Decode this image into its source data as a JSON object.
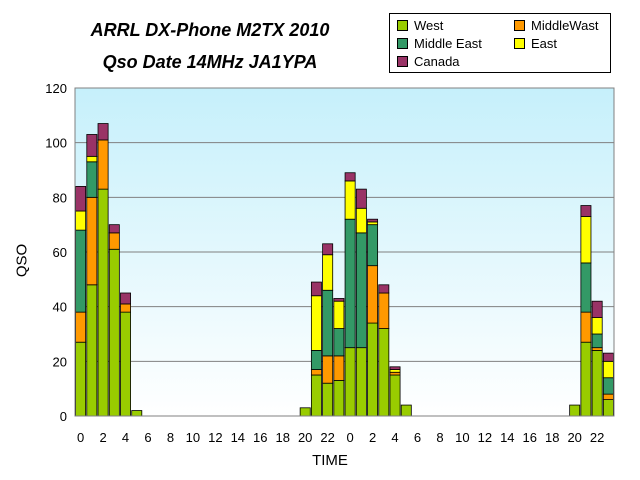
{
  "chart_data": {
    "type": "bar",
    "stacked": true,
    "title": "ARRL DX-Phone M2TX 2010",
    "subtitle": "Qso Date 14MHz JA1YPA",
    "xlabel": "TIME",
    "ylabel": "QSO",
    "ylim": [
      0,
      120
    ],
    "yticks": [
      0,
      20,
      40,
      60,
      80,
      100,
      120
    ],
    "grid": true,
    "legend_position": "top-right",
    "categories": [
      "0",
      "1",
      "2",
      "3",
      "4",
      "5",
      "6",
      "7",
      "8",
      "9",
      "10",
      "11",
      "12",
      "13",
      "14",
      "15",
      "16",
      "17",
      "18",
      "19",
      "20",
      "21",
      "22",
      "23",
      "0",
      "1",
      "2",
      "3",
      "4",
      "5",
      "6",
      "7",
      "8",
      "9",
      "10",
      "11",
      "12",
      "13",
      "14",
      "15",
      "16",
      "17",
      "18",
      "19",
      "20",
      "21",
      "22",
      "23"
    ],
    "xtick_labels": [
      "0",
      "2",
      "4",
      "6",
      "8",
      "10",
      "12",
      "14",
      "16",
      "18",
      "20",
      "22",
      "0",
      "2",
      "4",
      "6",
      "8",
      "10",
      "12",
      "14",
      "16",
      "18",
      "20",
      "22"
    ],
    "series": [
      {
        "name": "West",
        "color": "#99cc00",
        "values": [
          27,
          48,
          83,
          61,
          38,
          2,
          0,
          0,
          0,
          0,
          0,
          0,
          0,
          0,
          0,
          0,
          0,
          0,
          0,
          0,
          3,
          15,
          12,
          13,
          25,
          25,
          34,
          32,
          15,
          4,
          0,
          0,
          0,
          0,
          0,
          0,
          0,
          0,
          0,
          0,
          0,
          0,
          0,
          0,
          4,
          27,
          24,
          6
        ]
      },
      {
        "name": "MiddleWast",
        "color": "#ff9900",
        "values": [
          11,
          32,
          18,
          6,
          3,
          0,
          0,
          0,
          0,
          0,
          0,
          0,
          0,
          0,
          0,
          0,
          0,
          0,
          0,
          0,
          0,
          2,
          10,
          9,
          0,
          0,
          21,
          13,
          1,
          0,
          0,
          0,
          0,
          0,
          0,
          0,
          0,
          0,
          0,
          0,
          0,
          0,
          0,
          0,
          0,
          11,
          1,
          2
        ]
      },
      {
        "name": "Middle East",
        "color": "#339966",
        "values": [
          30,
          13,
          0,
          0,
          0,
          0,
          0,
          0,
          0,
          0,
          0,
          0,
          0,
          0,
          0,
          0,
          0,
          0,
          0,
          0,
          0,
          7,
          24,
          10,
          47,
          42,
          15,
          0,
          0,
          0,
          0,
          0,
          0,
          0,
          0,
          0,
          0,
          0,
          0,
          0,
          0,
          0,
          0,
          0,
          0,
          18,
          5,
          6
        ]
      },
      {
        "name": "East",
        "color": "#ffff00",
        "values": [
          7,
          2,
          0,
          0,
          0,
          0,
          0,
          0,
          0,
          0,
          0,
          0,
          0,
          0,
          0,
          0,
          0,
          0,
          0,
          0,
          0,
          20,
          13,
          10,
          14,
          9,
          1,
          0,
          1,
          0,
          0,
          0,
          0,
          0,
          0,
          0,
          0,
          0,
          0,
          0,
          0,
          0,
          0,
          0,
          0,
          17,
          6,
          6
        ]
      },
      {
        "name": "Canada",
        "color": "#993366",
        "values": [
          9,
          8,
          6,
          3,
          4,
          0,
          0,
          0,
          0,
          0,
          0,
          0,
          0,
          0,
          0,
          0,
          0,
          0,
          0,
          0,
          0,
          5,
          4,
          1,
          3,
          7,
          1,
          3,
          1,
          0,
          0,
          0,
          0,
          0,
          0,
          0,
          0,
          0,
          0,
          0,
          0,
          0,
          0,
          0,
          0,
          4,
          6,
          3
        ]
      }
    ]
  }
}
